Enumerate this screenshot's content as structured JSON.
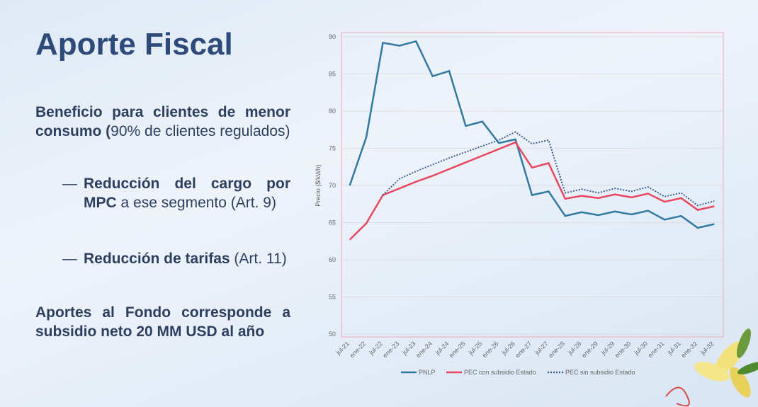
{
  "slide": {
    "title": "Aporte Fiscal",
    "p1_bold": "Beneficio para clientes de menor consumo (",
    "p1_rest": "90% de clientes regulados)",
    "b1_bold": "Reducción del cargo por MPC",
    "b1_rest": " a ese segmento (Art. 9)",
    "b2_bold": "Reducción de tarifas",
    "b2_rest": " (Art. 11)",
    "p2": "Aportes al Fondo corresponde a subsidio neto 20 MM USD al año"
  },
  "chart_data": {
    "type": "line",
    "y_label": "Precio ($/kWh)",
    "categories": [
      "jul-21",
      "ene-22",
      "jul-22",
      "ene-23",
      "jul-23",
      "ene-24",
      "jul-24",
      "ene-25",
      "jul-25",
      "ene-26",
      "jul-26",
      "ene-27",
      "jul-27",
      "ene-28",
      "jul-28",
      "ene-29",
      "jul-29",
      "ene-30",
      "jul-30",
      "ene-31",
      "jul-31",
      "ene-32",
      "jul-32"
    ],
    "series": [
      {
        "name": "PNLP",
        "color": "#3079a3",
        "style": "solid",
        "values": [
          70,
          76.5,
          89.2,
          88.8,
          89.4,
          84.7,
          85.4,
          78,
          78.6,
          75.7,
          76.2,
          68.7,
          69.2,
          65.9,
          66.4,
          66,
          66.5,
          66.1,
          66.6,
          65.4,
          65.9,
          64.3,
          64.8
        ]
      },
      {
        "name": "PEC con subsidio Estado",
        "color": "#e9475f",
        "style": "solid",
        "values": [
          62.7,
          64.9,
          68.7,
          69.6,
          70.5,
          71.3,
          72.2,
          73.1,
          74,
          74.9,
          75.8,
          72.4,
          73,
          68.2,
          68.6,
          68.3,
          68.8,
          68.4,
          68.9,
          67.8,
          68.3,
          66.7,
          67.2
        ]
      },
      {
        "name": "PEC sin subsidio Estado",
        "color": "#3d5f92",
        "style": "dotted",
        "values": [
          null,
          null,
          68.7,
          70.9,
          71.9,
          72.8,
          73.7,
          74.5,
          75.3,
          76.1,
          77.2,
          75.6,
          76.1,
          69,
          69.5,
          69,
          69.6,
          69.2,
          69.8,
          68.5,
          69,
          67.3,
          67.9
        ]
      }
    ],
    "ylim": [
      50,
      90
    ],
    "yticks": [
      50,
      55,
      60,
      65,
      70,
      75,
      80,
      85,
      90
    ],
    "grid": true,
    "legend": "bottom"
  }
}
